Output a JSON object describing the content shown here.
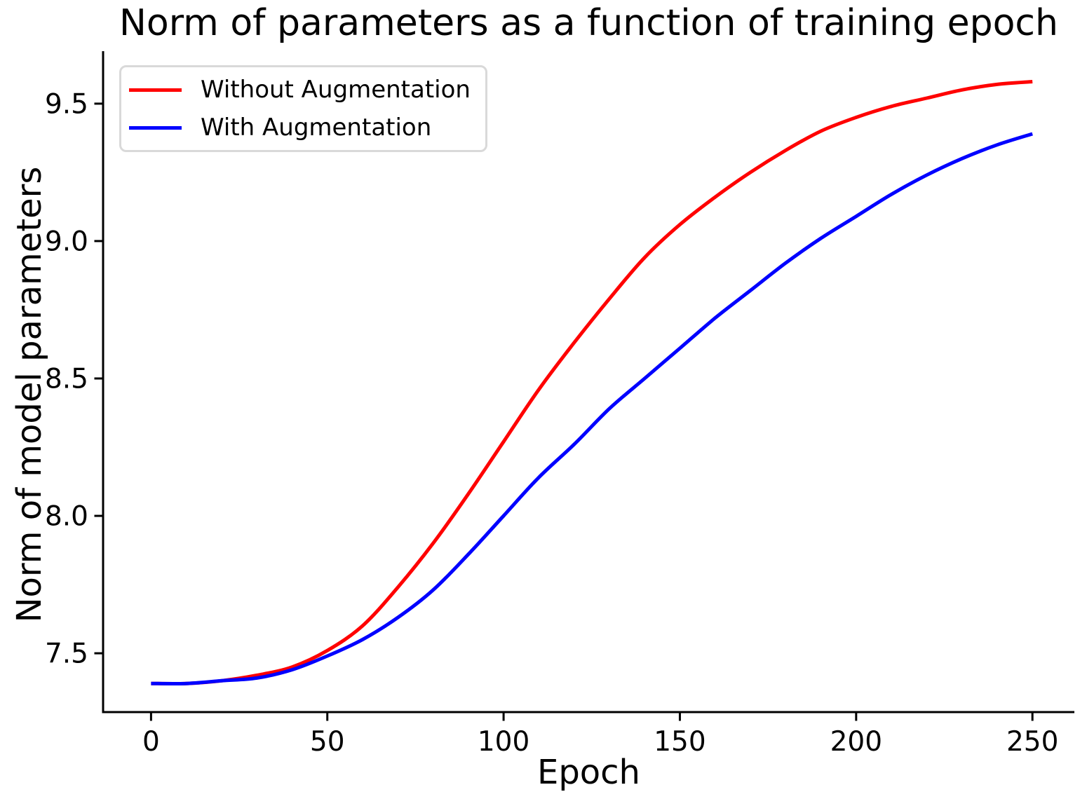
{
  "chart_data": {
    "type": "line",
    "title": "Norm of parameters as a function of training epoch",
    "xlabel": "Epoch",
    "ylabel": "Norm of model parameters",
    "x_ticks": [
      0,
      50,
      100,
      150,
      200,
      250
    ],
    "x_tick_labels": [
      "0",
      "50",
      "100",
      "150",
      "200",
      "250"
    ],
    "y_ticks": [
      7.5,
      8.0,
      8.5,
      9.0,
      9.5
    ],
    "y_tick_labels": [
      "7.5",
      "8.0",
      "8.5",
      "9.0",
      "9.5"
    ],
    "xlim": [
      -13.6,
      261.9
    ],
    "ylim": [
      7.286,
      9.691
    ],
    "grid": false,
    "legend_position": "upper-left",
    "axis_color": "#000000",
    "text_color": "#000000",
    "x": [
      0,
      10,
      20,
      30,
      40,
      50,
      60,
      70,
      80,
      90,
      100,
      110,
      120,
      130,
      140,
      150,
      160,
      170,
      180,
      190,
      200,
      210,
      220,
      230,
      240,
      250
    ],
    "series": [
      {
        "name": "Without Augmentation",
        "color": "#ff0000",
        "values": [
          7.39,
          7.39,
          7.4,
          7.42,
          7.45,
          7.51,
          7.6,
          7.74,
          7.9,
          8.08,
          8.27,
          8.46,
          8.63,
          8.79,
          8.94,
          9.06,
          9.16,
          9.25,
          9.33,
          9.4,
          9.45,
          9.49,
          9.52,
          9.55,
          9.57,
          9.58
        ]
      },
      {
        "name": "With Augmentation",
        "color": "#0000ff",
        "values": [
          7.39,
          7.39,
          7.4,
          7.41,
          7.44,
          7.49,
          7.55,
          7.63,
          7.73,
          7.86,
          8.0,
          8.14,
          8.26,
          8.39,
          8.5,
          8.61,
          8.72,
          8.82,
          8.92,
          9.01,
          9.09,
          9.17,
          9.24,
          9.3,
          9.35,
          9.39
        ]
      }
    ]
  }
}
